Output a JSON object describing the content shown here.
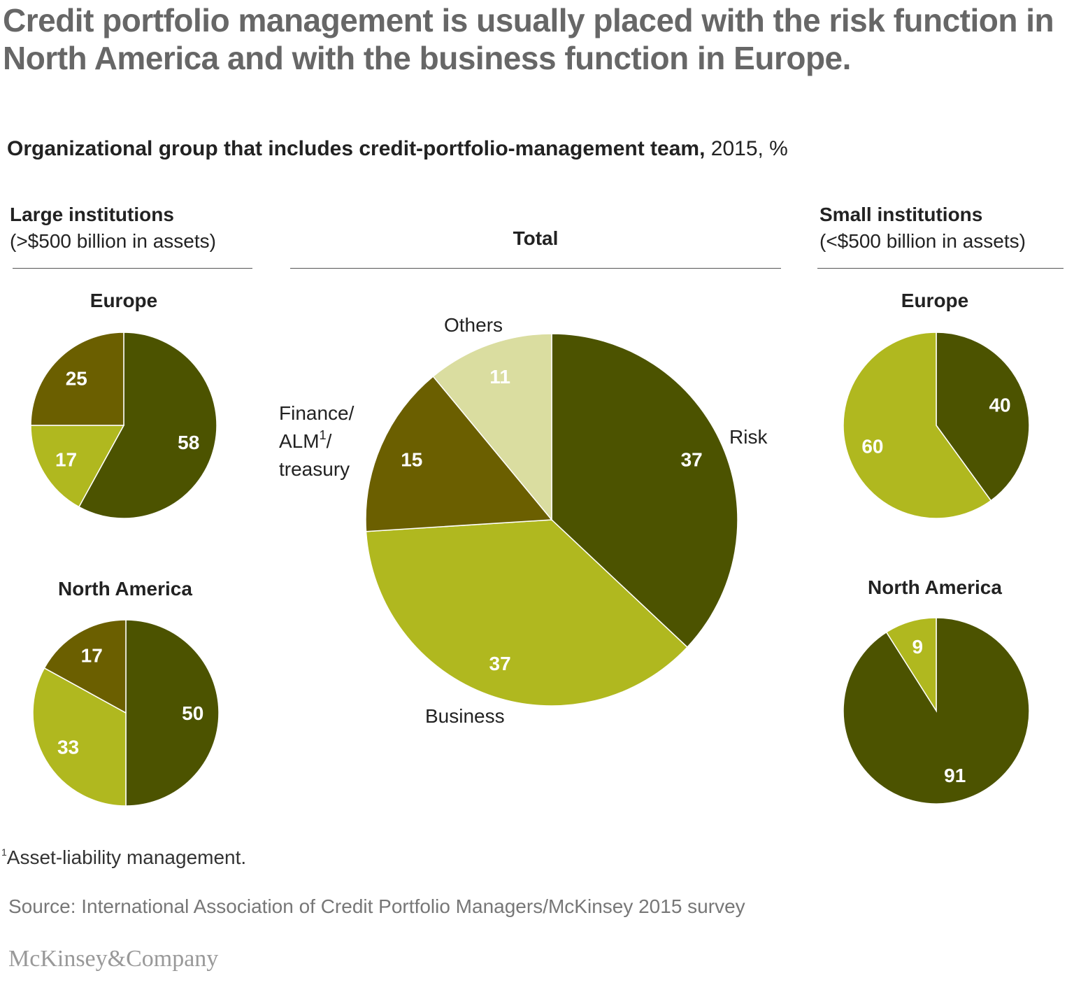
{
  "title": "Credit portfolio management is usually placed with the risk function in North America and with the business function in Europe.",
  "subtitle_bold": "Organizational group that includes credit-portfolio-management team,",
  "subtitle_rest": " 2015, %",
  "groups": {
    "large": {
      "heading": "Large institutions",
      "note": "(>$500 billion in assets)"
    },
    "total": {
      "heading": "Total"
    },
    "small": {
      "heading": "Small institutions",
      "note": "(<$500 billion in assets)"
    }
  },
  "colors": {
    "risk": "#4c5300",
    "business": "#b0b81f",
    "finance": "#6b5f00",
    "others": "#dadda0"
  },
  "chart_data": [
    {
      "type": "pie",
      "title": "Total",
      "categories": [
        "Risk",
        "Business",
        "Finance/ALM¹/treasury",
        "Others"
      ],
      "values": [
        37,
        37,
        15,
        11
      ]
    },
    {
      "type": "pie",
      "title": "Europe",
      "group": "Large institutions",
      "categories": [
        "Risk",
        "Business",
        "Finance"
      ],
      "values": [
        58,
        17,
        25
      ]
    },
    {
      "type": "pie",
      "title": "North America",
      "group": "Large institutions",
      "categories": [
        "Risk",
        "Business",
        "Finance"
      ],
      "values": [
        50,
        33,
        17
      ]
    },
    {
      "type": "pie",
      "title": "Europe",
      "group": "Small institutions",
      "categories": [
        "Risk",
        "Business"
      ],
      "values": [
        40,
        60
      ]
    },
    {
      "type": "pie",
      "title": "North America",
      "group": "Small institutions",
      "categories": [
        "Risk",
        "Business"
      ],
      "values": [
        91,
        9
      ]
    }
  ],
  "total_labels": {
    "risk": "Risk",
    "business": "Business",
    "finance_1": "Finance/",
    "finance_2": "ALM",
    "finance_sup": "1",
    "finance_2b": "/",
    "finance_3": "treasury",
    "others": "Others"
  },
  "footnote_mark": "1",
  "footnote": "Asset-liability management.",
  "source": "Source: International Association of Credit Portfolio Managers/McKinsey 2015 survey",
  "logo": "McKinsey&Company"
}
